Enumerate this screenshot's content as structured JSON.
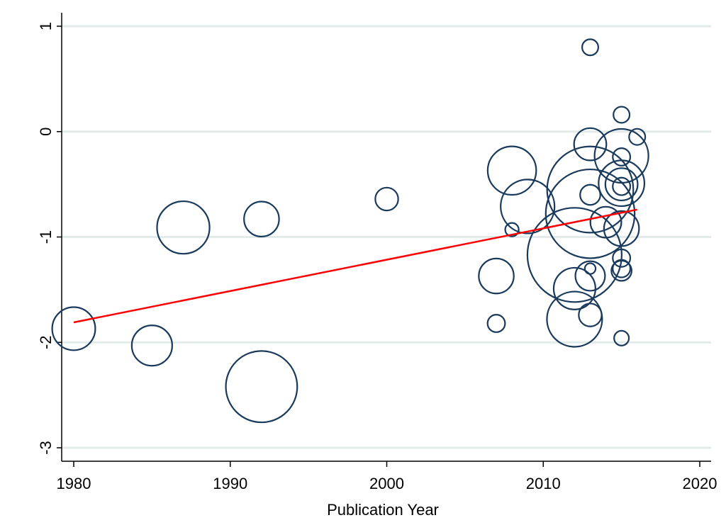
{
  "chart_data": {
    "type": "scatter",
    "title": "",
    "xlabel": "Publication Year",
    "ylabel": "",
    "xlim": [
      1980,
      2020
    ],
    "ylim": [
      -3,
      1
    ],
    "x_ticks": [
      "1980",
      "1990",
      "2000",
      "2010",
      "2020"
    ],
    "y_ticks": [
      "-3",
      "-2",
      "-1",
      "0",
      "1"
    ],
    "grid": "horizontal",
    "marker_style": "hollow circles, size proportional to weight",
    "colors": {
      "marker": "#1a3a5c",
      "fit_line": "#ff0000",
      "grid": "#e3eaea"
    },
    "points": [
      {
        "x": 1980,
        "y": -1.87,
        "size": 3.2
      },
      {
        "x": 1985,
        "y": -2.03,
        "size": 3.0
      },
      {
        "x": 1987,
        "y": -0.91,
        "size": 3.9
      },
      {
        "x": 1992,
        "y": -0.83,
        "size": 2.6
      },
      {
        "x": 1992,
        "y": -2.42,
        "size": 5.3
      },
      {
        "x": 2000,
        "y": -0.64,
        "size": 1.7
      },
      {
        "x": 2007,
        "y": -1.37,
        "size": 2.6
      },
      {
        "x": 2007,
        "y": -1.82,
        "size": 1.3
      },
      {
        "x": 2008,
        "y": -0.37,
        "size": 3.6
      },
      {
        "x": 2008,
        "y": -0.93,
        "size": 1.0
      },
      {
        "x": 2009,
        "y": -0.71,
        "size": 4.0
      },
      {
        "x": 2012,
        "y": -1.17,
        "size": 7.0
      },
      {
        "x": 2012,
        "y": -1.49,
        "size": 3.1
      },
      {
        "x": 2012,
        "y": -1.78,
        "size": 4.1
      },
      {
        "x": 2013,
        "y": 0.8,
        "size": 1.2
      },
      {
        "x": 2013,
        "y": -0.12,
        "size": 2.4
      },
      {
        "x": 2013,
        "y": -0.55,
        "size": 6.4
      },
      {
        "x": 2013,
        "y": -0.6,
        "size": 1.5
      },
      {
        "x": 2013,
        "y": -0.78,
        "size": 6.6
      },
      {
        "x": 2013,
        "y": -1.3,
        "size": 0.8
      },
      {
        "x": 2013,
        "y": -1.37,
        "size": 2.2
      },
      {
        "x": 2013,
        "y": -1.74,
        "size": 1.7
      },
      {
        "x": 2014,
        "y": -0.86,
        "size": 2.3
      },
      {
        "x": 2015,
        "y": 0.16,
        "size": 1.2
      },
      {
        "x": 2015,
        "y": -0.23,
        "size": 4.0
      },
      {
        "x": 2015,
        "y": -0.24,
        "size": 1.3
      },
      {
        "x": 2015,
        "y": -0.49,
        "size": 3.4
      },
      {
        "x": 2015,
        "y": -0.5,
        "size": 2.4
      },
      {
        "x": 2015,
        "y": -0.52,
        "size": 1.3
      },
      {
        "x": 2015,
        "y": -0.92,
        "size": 2.6
      },
      {
        "x": 2015,
        "y": -1.2,
        "size": 1.3
      },
      {
        "x": 2015,
        "y": -1.3,
        "size": 1.3
      },
      {
        "x": 2015,
        "y": -1.32,
        "size": 1.5
      },
      {
        "x": 2015,
        "y": -1.96,
        "size": 1.1
      },
      {
        "x": 2016,
        "y": -0.05,
        "size": 1.2
      }
    ],
    "fit_line": {
      "x": [
        1980,
        2016
      ],
      "y": [
        -1.81,
        -0.74
      ]
    }
  }
}
